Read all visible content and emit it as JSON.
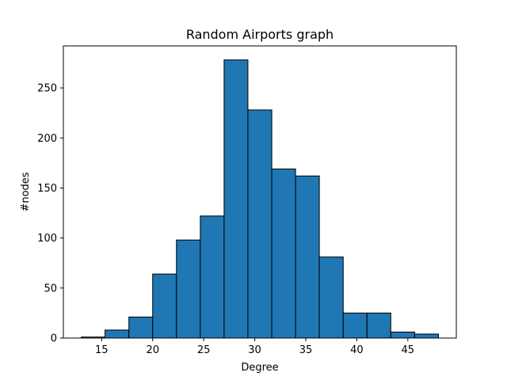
{
  "chart_data": {
    "type": "bar",
    "title": "Random Airports graph",
    "xlabel": "Degree",
    "ylabel": "#nodes",
    "xlim": [
      11.25,
      49.75
    ],
    "ylim": [
      0,
      292
    ],
    "xticks": [
      15,
      20,
      25,
      30,
      35,
      40,
      45
    ],
    "yticks": [
      0,
      50,
      100,
      150,
      200,
      250
    ],
    "bar_color": "#1f77b4",
    "edge_color": "#000000",
    "grid": false,
    "bins": [
      {
        "x0": 13.0,
        "x1": 15.33,
        "value": 1
      },
      {
        "x0": 15.33,
        "x1": 17.67,
        "value": 8
      },
      {
        "x0": 17.67,
        "x1": 20.0,
        "value": 21
      },
      {
        "x0": 20.0,
        "x1": 22.33,
        "value": 64
      },
      {
        "x0": 22.33,
        "x1": 24.67,
        "value": 98
      },
      {
        "x0": 24.67,
        "x1": 27.0,
        "value": 122
      },
      {
        "x0": 27.0,
        "x1": 29.33,
        "value": 278
      },
      {
        "x0": 29.33,
        "x1": 31.67,
        "value": 228
      },
      {
        "x0": 31.67,
        "x1": 34.0,
        "value": 169
      },
      {
        "x0": 34.0,
        "x1": 36.33,
        "value": 162
      },
      {
        "x0": 36.33,
        "x1": 38.67,
        "value": 81
      },
      {
        "x0": 38.67,
        "x1": 41.0,
        "value": 25
      },
      {
        "x0": 41.0,
        "x1": 43.33,
        "value": 25
      },
      {
        "x0": 43.33,
        "x1": 45.67,
        "value": 6
      },
      {
        "x0": 45.67,
        "x1": 48.0,
        "value": 4
      }
    ]
  }
}
